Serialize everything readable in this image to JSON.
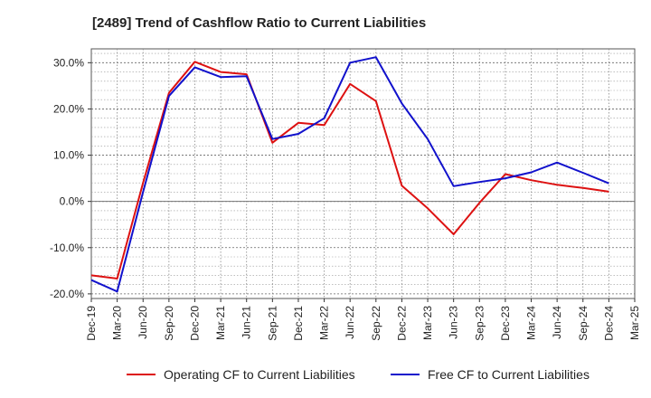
{
  "chart_data": {
    "type": "line",
    "title": "[2489]  Trend of Cashflow Ratio to Current Liabilities",
    "xlabel": "",
    "ylabel": "",
    "categories": [
      "Dec-19",
      "Mar-20",
      "Jun-20",
      "Sep-20",
      "Dec-20",
      "Mar-21",
      "Jun-21",
      "Sep-21",
      "Dec-21",
      "Mar-22",
      "Jun-22",
      "Sep-22",
      "Dec-22",
      "Mar-23",
      "Jun-23",
      "Sep-23",
      "Dec-23",
      "Mar-24",
      "Jun-24",
      "Sep-24",
      "Dec-24",
      "Mar-25"
    ],
    "y_ticks": [
      "30.0%",
      "20.0%",
      "10.0%",
      "0.0%",
      "-10.0%",
      "-20.0%"
    ],
    "y_tick_values": [
      30,
      20,
      10,
      0,
      -10,
      -20
    ],
    "ylim": [
      -21,
      33
    ],
    "grid": true,
    "legend_position": "bottom",
    "series": [
      {
        "name": "Operating CF to Current Liabilities",
        "color": "#dd1111",
        "values": [
          -16.0,
          -16.7,
          4.0,
          23.5,
          30.2,
          28.0,
          27.5,
          12.7,
          17.0,
          16.5,
          25.4,
          21.7,
          3.4,
          -1.5,
          -7.1,
          -0.3,
          5.9,
          4.6,
          3.6,
          2.9,
          2.1,
          null
        ]
      },
      {
        "name": "Free CF to Current Liabilities",
        "color": "#1111cc",
        "values": [
          -17.0,
          -19.5,
          2.0,
          22.8,
          29.0,
          26.9,
          27.1,
          13.5,
          14.6,
          18.0,
          30.0,
          31.2,
          21.2,
          13.5,
          3.3,
          4.2,
          5.0,
          6.3,
          8.4,
          6.2,
          3.9,
          null
        ]
      }
    ]
  }
}
